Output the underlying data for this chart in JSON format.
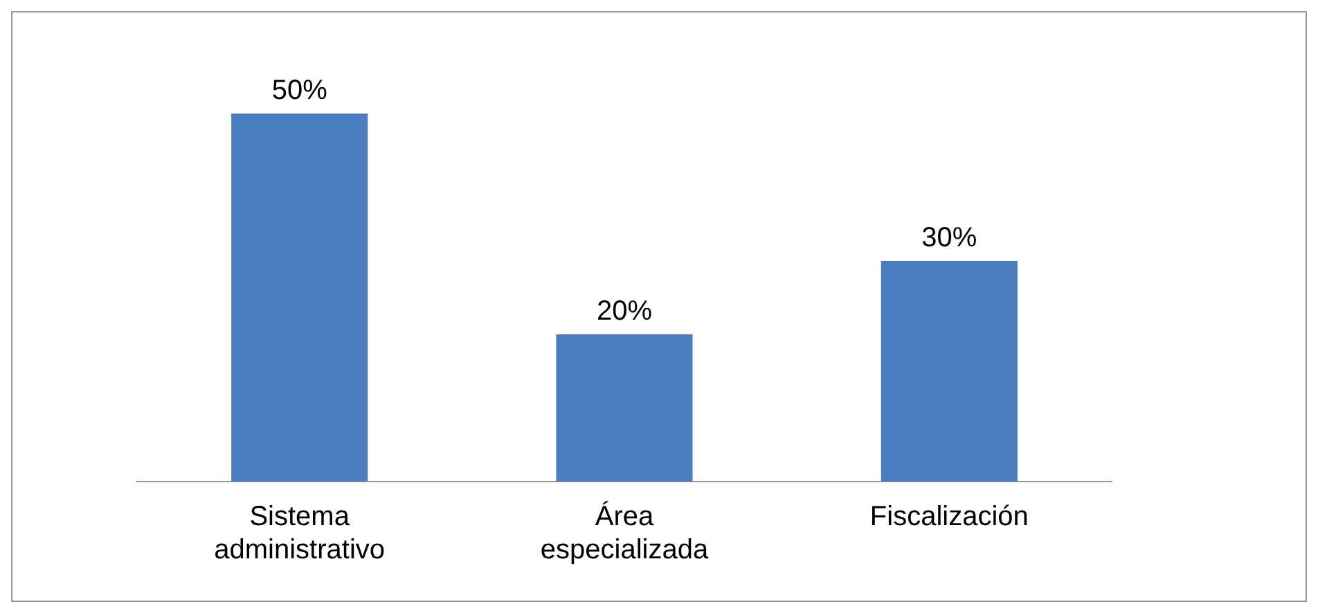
{
  "chart_data": {
    "type": "bar",
    "categories": [
      "Sistema administrativo",
      "Área especializada",
      "Fiscalización"
    ],
    "values": [
      50,
      20,
      30
    ],
    "value_labels": [
      "50%",
      "20%",
      "30%"
    ],
    "color": "#4a7cc0",
    "tick_labels": "x",
    "grid": false,
    "legend": false
  }
}
